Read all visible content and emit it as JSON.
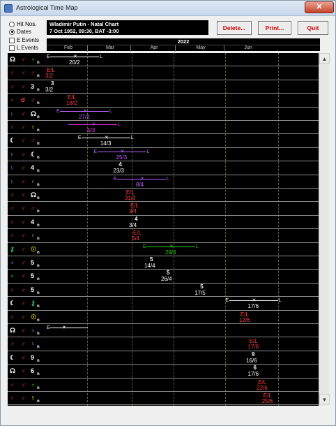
{
  "window": {
    "title": "Astrological Time Map",
    "close": "✕"
  },
  "options": [
    {
      "label": "Hit Nos.",
      "type": "radio",
      "checked": false
    },
    {
      "label": "Dates",
      "type": "radio",
      "checked": true
    },
    {
      "label": "E Events",
      "type": "check",
      "checked": false
    },
    {
      "label": "L Events",
      "type": "check",
      "checked": false
    }
  ],
  "subject": {
    "name": "Wladimir Putin - Natal Chart",
    "details": "7 Oct 1952, 09:30, BAT -3:00"
  },
  "buttons": {
    "delete": "Delete...",
    "print": "Print...",
    "quit": "Quit"
  },
  "timeline": {
    "year": "2022",
    "months": [
      "Feb",
      "Mar",
      "Apr",
      "May",
      "Jun"
    ]
  },
  "colors": {
    "white": "#ffffff",
    "red": "#ff4040",
    "green": "#26d000",
    "purple": "#c060ff",
    "yellow": "#ffe000",
    "blue": "#5aa8ff",
    "magenta": "#e030e0",
    "gray": "#c0c0c0",
    "teal": "#30c060"
  },
  "rows": [
    {
      "a": "☊",
      "ac": "white",
      "asp": "♂",
      "b": "♆",
      "bc": "green",
      "n": "n",
      "event": {
        "kind": "bar",
        "start_label": "E",
        "end_label": "L",
        "date": "20/2",
        "color": "white",
        "x1": 0.0,
        "xm": 0.19,
        "x2": 0.39
      }
    },
    {
      "a": "♂",
      "ac": "red",
      "asp": "♂",
      "b": "♂",
      "bc": "red",
      "n": "n",
      "event": {
        "kind": "el",
        "date": "3/2",
        "color": "red"
      }
    },
    {
      "a": "♂",
      "ac": "red",
      "asp": "♂",
      "b": "3",
      "bc": "white",
      "n": "n",
      "event": {
        "kind": "num",
        "num": "3",
        "date": "3/2",
        "color": "white"
      }
    },
    {
      "a": "♂",
      "ac": "red",
      "asp": "☌",
      "b": "♂",
      "bc": "red",
      "n": "n",
      "event": {
        "kind": "el",
        "date": "18/2",
        "color": "red"
      }
    },
    {
      "a": "♄",
      "ac": "purple",
      "asp": "♂",
      "b": "☊",
      "bc": "white",
      "n": "n",
      "event": {
        "kind": "bar",
        "start_label": "E",
        "end_label": "L",
        "date": "27/2",
        "color": "purple"
      }
    },
    {
      "a": "♀",
      "ac": "magenta",
      "asp": "♂",
      "b": "♀",
      "bc": "yellow",
      "n": "n",
      "event": {
        "kind": "bar",
        "start_label": "",
        "end_label": "L",
        "date": "5/3",
        "color": "magenta"
      }
    },
    {
      "a": "☾",
      "ac": "white",
      "asp": "♂",
      "b": "♂",
      "bc": "red",
      "n": "n",
      "event": {
        "kind": "bar",
        "start_label": "E",
        "end_label": "L",
        "date": "14/3",
        "color": "white"
      }
    },
    {
      "a": "♄",
      "ac": "purple",
      "asp": "♂",
      "b": "☾",
      "bc": "white",
      "n": "n",
      "event": {
        "kind": "bar",
        "start_label": "E",
        "end_label": "L",
        "date": "25/3",
        "color": "purple"
      }
    },
    {
      "a": "♄",
      "ac": "purple",
      "asp": "♂",
      "b": "4",
      "bc": "white",
      "n": "n",
      "event": {
        "kind": "num",
        "num": "4",
        "date": "23/3",
        "color": "white"
      }
    },
    {
      "a": "♄",
      "ac": "purple",
      "asp": "♂",
      "b": "♇",
      "bc": "gray",
      "n": "n",
      "event": {
        "kind": "bar",
        "start_label": "E",
        "end_label": "L",
        "date": "8/4",
        "color": "purple"
      }
    },
    {
      "a": "♂",
      "ac": "red",
      "asp": "♂",
      "b": "☊",
      "bc": "white",
      "n": "n",
      "event": {
        "kind": "el",
        "date": "31/3",
        "color": "red"
      }
    },
    {
      "a": "♂",
      "ac": "red",
      "asp": "♂",
      "b": "♂",
      "bc": "red",
      "n": "n",
      "event": {
        "kind": "el",
        "date": "3/4",
        "color": "red"
      }
    },
    {
      "a": "♂",
      "ac": "red",
      "asp": "♂",
      "b": "4",
      "bc": "white",
      "n": "n",
      "event": {
        "kind": "num",
        "num": "4",
        "date": "3/4",
        "color": "white"
      }
    },
    {
      "a": "♂",
      "ac": "red",
      "asp": "♂",
      "b": "♇",
      "bc": "gray",
      "n": "n",
      "event": {
        "kind": "el",
        "date": "5/4",
        "color": "red"
      }
    },
    {
      "a": "⚷",
      "ac": "teal",
      "asp": "♂",
      "b": "☉",
      "bc": "yellow",
      "n": "n",
      "event": {
        "kind": "bar",
        "start_label": "E",
        "end_label": "L",
        "date": "29/4",
        "color": "green"
      }
    },
    {
      "a": "♃",
      "ac": "blue",
      "asp": "♂",
      "b": "5",
      "bc": "white",
      "n": "n",
      "event": {
        "kind": "num",
        "num": "5",
        "date": "14/4",
        "color": "white"
      }
    },
    {
      "a": "♆",
      "ac": "green",
      "asp": "♂",
      "b": "5",
      "bc": "white",
      "n": "n",
      "event": {
        "kind": "num",
        "num": "5",
        "date": "26/4",
        "color": "white"
      }
    },
    {
      "a": "♂",
      "ac": "red",
      "asp": "♂",
      "b": "5",
      "bc": "white",
      "n": "n",
      "event": {
        "kind": "num",
        "num": "5",
        "date": "17/5",
        "color": "white"
      }
    },
    {
      "a": "☾",
      "ac": "white",
      "asp": "♂",
      "b": "⚷",
      "bc": "teal",
      "n": "n",
      "event": {
        "kind": "bar",
        "start_label": "E",
        "end_label": "L",
        "date": "17/6",
        "color": "white"
      }
    },
    {
      "a": "♂",
      "ac": "red",
      "asp": "♂",
      "b": "☉",
      "bc": "yellow",
      "n": "n",
      "event": {
        "kind": "el",
        "date": "12/6",
        "color": "red"
      }
    },
    {
      "a": "☊",
      "ac": "white",
      "asp": "♂",
      "b": "♃",
      "bc": "blue",
      "n": "n",
      "event": {
        "kind": "bar",
        "start_label": "E",
        "end_label": "",
        "date": "",
        "color": "white"
      }
    },
    {
      "a": "♂",
      "ac": "red",
      "asp": "♂",
      "b": "♄",
      "bc": "purple",
      "n": "n",
      "event": {
        "kind": "el",
        "date": "17/6",
        "color": "red"
      }
    },
    {
      "a": "☾",
      "ac": "white",
      "asp": "♂",
      "b": "9",
      "bc": "white",
      "n": "n",
      "event": {
        "kind": "num",
        "num": "9",
        "date": "16/6",
        "color": "white"
      }
    },
    {
      "a": "☊",
      "ac": "white",
      "asp": "♂",
      "b": "6",
      "bc": "white",
      "n": "n",
      "event": {
        "kind": "num",
        "num": "6",
        "date": "17/6",
        "color": "white"
      }
    },
    {
      "a": "♂",
      "ac": "red",
      "asp": "♂",
      "b": "♆",
      "bc": "green",
      "n": "n",
      "event": {
        "kind": "el",
        "date": "22/6",
        "color": "red"
      }
    },
    {
      "a": "♂",
      "ac": "red",
      "asp": "♂",
      "b": "☿",
      "bc": "yellow",
      "n": "n",
      "event": {
        "kind": "el",
        "date": "25/6",
        "color": "red"
      }
    }
  ]
}
